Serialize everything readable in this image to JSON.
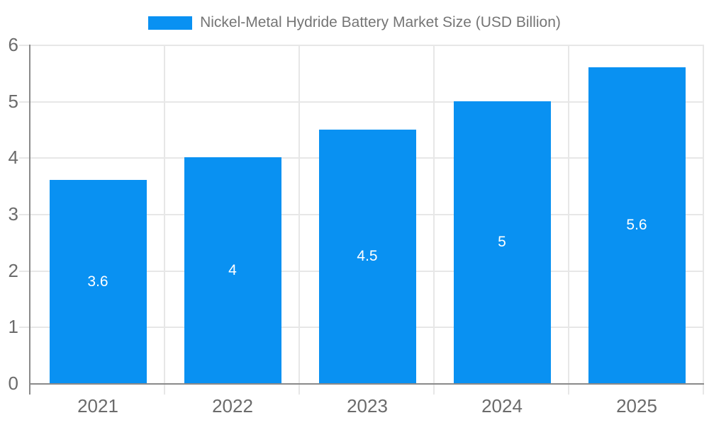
{
  "chart_data": {
    "type": "bar",
    "title": "Nickel-Metal Hydride Battery Market Size (USD Billion)",
    "categories": [
      "2021",
      "2022",
      "2023",
      "2024",
      "2025"
    ],
    "values": [
      3.6,
      4,
      4.5,
      5,
      5.6
    ],
    "value_labels": [
      "3.6",
      "4",
      "4.5",
      "5",
      "5.6"
    ],
    "series": [
      {
        "name": "Nickel-Metal Hydride Battery Market Size (USD Billion)",
        "values": [
          3.6,
          4,
          4.5,
          5,
          5.6
        ]
      }
    ],
    "xlabel": "",
    "ylabel": "",
    "y_ticks": [
      0,
      1,
      2,
      3,
      4,
      5,
      6
    ],
    "ylim": [
      0,
      6
    ],
    "grid": true,
    "legend_position": "top",
    "value_labels_position": "center-inside-bar"
  },
  "colors": {
    "bar": "#0991f2",
    "bar_label": "#ffffff",
    "grid": "#e7e7e7",
    "axis": "#8a8a8a",
    "tick_label": "#6b6b6b",
    "legend_text": "#757575",
    "background": "#ffffff"
  }
}
